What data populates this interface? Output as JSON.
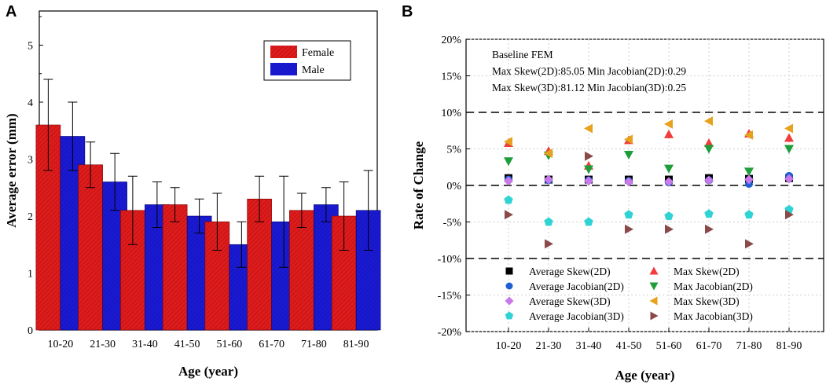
{
  "panel_labels": {
    "a": "A",
    "b": "B"
  },
  "colors": {
    "female": "#e01b1b",
    "male": "#1a1ad6",
    "avg_skew_2d": "#000000",
    "avg_jac_2d": "#1f5fd1",
    "avg_skew_3d": "#c77ae8",
    "avg_jac_3d": "#2fd3d3",
    "max_skew_2d": "#f03c3c",
    "max_jac_2d": "#1e9e3a",
    "max_skew_3d": "#e6a21d",
    "max_jac_3d": "#8b4a4a"
  },
  "chart_data": [
    {
      "type": "bar",
      "panel": "A",
      "categories": [
        "10-20",
        "21-30",
        "31-40",
        "41-50",
        "51-60",
        "61-70",
        "71-80",
        "81-90"
      ],
      "series": [
        {
          "name": "Female",
          "values": [
            3.6,
            2.9,
            2.1,
            2.2,
            1.9,
            2.3,
            2.1,
            2.0
          ],
          "error": [
            0.8,
            0.4,
            0.6,
            0.3,
            0.5,
            0.4,
            0.3,
            0.6
          ]
        },
        {
          "name": "Male",
          "values": [
            3.4,
            2.6,
            2.2,
            2.0,
            1.5,
            1.9,
            2.2,
            2.1
          ],
          "error": [
            0.6,
            0.5,
            0.4,
            0.3,
            0.4,
            0.8,
            0.3,
            0.7
          ]
        }
      ],
      "xlabel": "Age (year)",
      "ylabel": "Average error (mm)",
      "ylim": [
        0,
        5.6
      ],
      "yticks": [
        0,
        1,
        2,
        3,
        4,
        5
      ],
      "yticklabels": [
        "0",
        "1",
        "2",
        "3",
        "4",
        "5"
      ],
      "legend": [
        "Female",
        "Male"
      ],
      "legend_position": "top-right"
    },
    {
      "type": "scatter",
      "panel": "B",
      "categories": [
        "10-20",
        "21-30",
        "31-40",
        "41-50",
        "51-60",
        "61-70",
        "71-80",
        "81-90"
      ],
      "xlabel": "Age (year)",
      "ylabel": "Rate of Change",
      "ylim": [
        -20,
        20
      ],
      "yticks": [
        -20,
        -15,
        -10,
        -5,
        0,
        5,
        10,
        15,
        20
      ],
      "yticklabels": [
        "-20%",
        "-15%",
        "-10%",
        "-5%",
        "0%",
        "5%",
        "10%",
        "15%",
        "20%"
      ],
      "reference_lines": [
        10,
        0,
        -10
      ],
      "annotation": [
        "Baseline FEM",
        "Max Skew(2D):85.05   Min Jacobian(2D):0.29",
        "Max Skew(3D):81.12   Min Jacobian(3D):0.25"
      ],
      "series": [
        {
          "name": "Average Skew(2D)",
          "marker": "square",
          "color_key": "avg_skew_2d",
          "values": [
            1.0,
            0.8,
            0.8,
            0.8,
            0.8,
            1.0,
            0.9,
            1.0
          ]
        },
        {
          "name": "Max Skew(2D)",
          "marker": "triangle-up",
          "color_key": "max_skew_2d",
          "values": [
            5.8,
            4.7,
            2.7,
            6.2,
            7.0,
            5.8,
            7.1,
            6.5
          ]
        },
        {
          "name": "Average Jacobian(2D)",
          "marker": "circle",
          "color_key": "avg_jac_2d",
          "values": [
            0.8,
            0.7,
            0.7,
            0.6,
            0.4,
            0.7,
            0.2,
            1.3
          ]
        },
        {
          "name": "Max Jacobian(2D)",
          "marker": "triangle-down",
          "color_key": "max_jac_2d",
          "values": [
            3.3,
            4.1,
            2.2,
            4.2,
            2.3,
            5.0,
            1.9,
            5.0
          ]
        },
        {
          "name": "Average Skew(3D)",
          "marker": "diamond",
          "color_key": "avg_skew_3d",
          "values": [
            0.6,
            0.8,
            0.6,
            0.5,
            0.5,
            0.7,
            0.8,
            0.9
          ]
        },
        {
          "name": "Max Skew(3D)",
          "marker": "triangle-left",
          "color_key": "max_skew_3d",
          "values": [
            6.0,
            4.4,
            7.8,
            6.3,
            8.4,
            8.8,
            6.9,
            7.8
          ]
        },
        {
          "name": "Average Jacobian(3D)",
          "marker": "pentagon",
          "color_key": "avg_jac_3d",
          "values": [
            -2.0,
            -5.0,
            -5.0,
            -4.0,
            -4.2,
            -3.9,
            -4.0,
            -3.3
          ]
        },
        {
          "name": "Max Jacobian(3D)",
          "marker": "triangle-right",
          "color_key": "max_jac_3d",
          "values": [
            -4.0,
            -8.0,
            4.0,
            -6.0,
            -6.0,
            -6.0,
            -8.0,
            -4.0
          ]
        }
      ],
      "legend_position": "bottom"
    }
  ]
}
